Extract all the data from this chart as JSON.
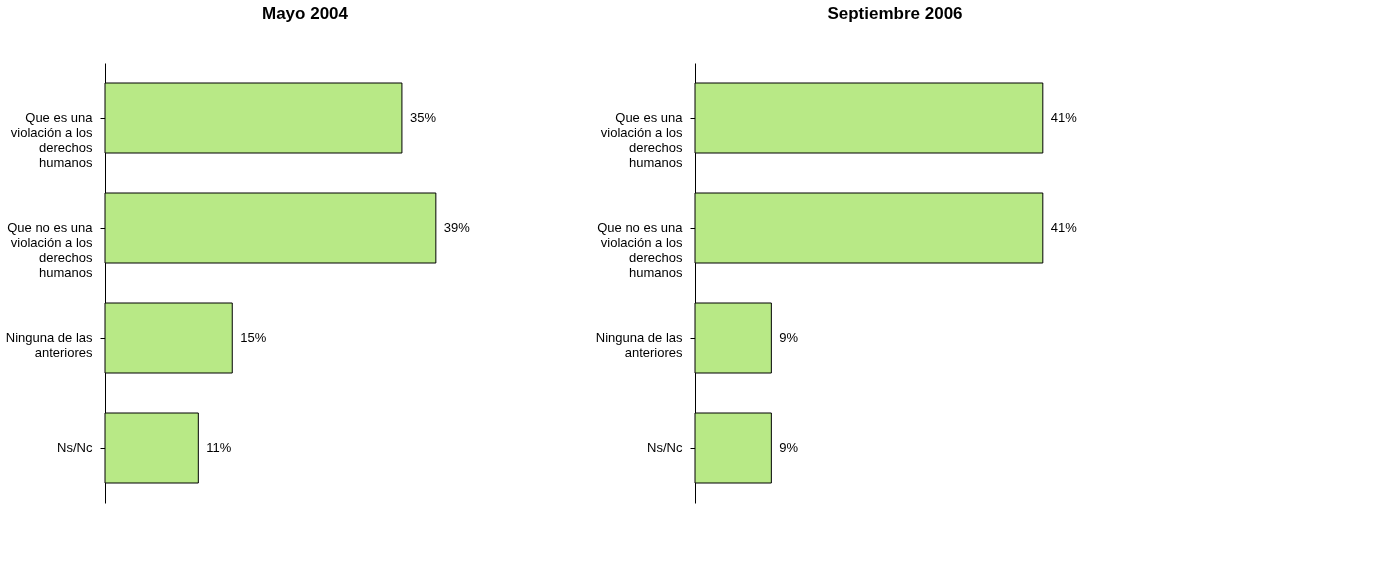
{
  "chart_data": [
    {
      "type": "bar",
      "orientation": "horizontal",
      "title": "Mayo 2004",
      "categories": [
        "Que es una violación a los derechos humanos",
        "Que no es una violación a los derechos humanos",
        "Ninguna de las anteriores",
        "Ns/Nc"
      ],
      "values": [
        35,
        39,
        15,
        11
      ],
      "color": "#b8e986",
      "value_labels": [
        "35%",
        "39%",
        "15%",
        "11%"
      ],
      "tick_labels": "y",
      "grid": false
    },
    {
      "type": "bar",
      "orientation": "horizontal",
      "title": "Septiembre 2006",
      "categories": [
        "Que es una violación a los derechos humanos",
        "Que no es una violación a los derechos humanos",
        "Ninguna de las anteriores",
        "Ns/Nc"
      ],
      "values": [
        41,
        41,
        9,
        9
      ],
      "color": "#b8e986",
      "value_labels": [
        "41%",
        "41%",
        "9%",
        "9%"
      ],
      "tick_labels": "y",
      "grid": false
    }
  ]
}
